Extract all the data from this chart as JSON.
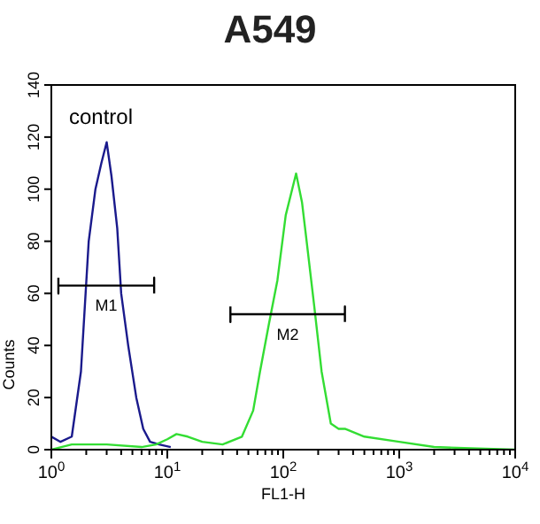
{
  "chart_data": {
    "type": "line",
    "title": "A549",
    "xlabel": "FL1-H",
    "ylabel": "Counts",
    "log": "x",
    "xlim": [
      1,
      10000
    ],
    "ylim": [
      0,
      140
    ],
    "xticks": [
      {
        "value": 1,
        "label": "10$^{0}$"
      },
      {
        "value": 2,
        "label": null
      },
      {
        "value": 3,
        "label": null
      },
      {
        "value": 4,
        "label": null
      },
      {
        "value": 5,
        "label": null
      },
      {
        "value": 6,
        "label": null
      },
      {
        "value": 7,
        "label": null
      },
      {
        "value": 8,
        "label": null
      },
      {
        "value": 9,
        "label": null
      },
      {
        "value": 10,
        "label": "10$^{1}$"
      },
      {
        "value": 20,
        "label": null
      },
      {
        "value": 30,
        "label": null
      },
      {
        "value": 40,
        "label": null
      },
      {
        "value": 50,
        "label": null
      },
      {
        "value": 60,
        "label": null
      },
      {
        "value": 70,
        "label": null
      },
      {
        "value": 80,
        "label": null
      },
      {
        "value": 90,
        "label": null
      },
      {
        "value": 100,
        "label": "10$^{2}$"
      },
      {
        "value": 200,
        "label": null
      },
      {
        "value": 300,
        "label": null
      },
      {
        "value": 400,
        "label": null
      },
      {
        "value": 500,
        "label": null
      },
      {
        "value": 600,
        "label": null
      },
      {
        "value": 700,
        "label": null
      },
      {
        "value": 800,
        "label": null
      },
      {
        "value": 900,
        "label": null
      },
      {
        "value": 1000,
        "label": "10$^{3}$"
      },
      {
        "value": 2000,
        "label": null
      },
      {
        "value": 3000,
        "label": null
      },
      {
        "value": 4000,
        "label": null
      },
      {
        "value": 5000,
        "label": null
      },
      {
        "value": 6000,
        "label": null
      },
      {
        "value": 7000,
        "label": null
      },
      {
        "value": 8000,
        "label": null
      },
      {
        "value": 9000,
        "label": null
      },
      {
        "value": 10000,
        "label": "10$^{4}$"
      }
    ],
    "yticks": [
      0,
      20,
      40,
      60,
      80,
      100,
      120,
      140
    ],
    "grid": false,
    "marker": "none",
    "line_style": "solid",
    "series": [
      {
        "color": "#1a1a8c",
        "x": [
          1,
          1.2,
          1.5,
          1.8,
          2.1,
          2.4,
          2.7,
          3,
          3.3,
          3.7,
          4,
          4.6,
          5.4,
          6.2,
          7.1,
          8.5,
          10.7
        ],
        "values": [
          5,
          3,
          5,
          30,
          80,
          100,
          110,
          118,
          105,
          85,
          60,
          40,
          20,
          8,
          3,
          2,
          1
        ]
      },
      {
        "color": "#33dd33",
        "x": [
          1,
          1.5,
          3,
          6,
          8,
          10,
          12,
          15,
          20,
          30,
          44,
          55,
          63,
          75,
          89,
          105,
          129,
          145,
          159,
          185,
          214,
          257,
          300,
          340,
          500,
          1000,
          2000,
          10000
        ],
        "values": [
          0,
          2,
          2,
          1,
          2,
          4,
          6,
          5,
          3,
          2,
          5,
          15,
          30,
          48,
          65,
          90,
          106,
          95,
          80,
          55,
          30,
          10,
          8,
          8,
          5,
          3,
          1,
          0
        ]
      },
      {
        "name": "M1",
        "color": "#000000",
        "x": [
          1.15,
          1.15,
          1.15,
          7.7,
          7.7,
          7.7
        ],
        "values": [
          66,
          60,
          63,
          63,
          66,
          60
        ]
      },
      {
        "name": "M2",
        "color": "#000000",
        "x": [
          35,
          35,
          35,
          340,
          340,
          340
        ],
        "values": [
          55,
          49,
          52,
          52,
          55,
          49
        ]
      }
    ],
    "annotations": [
      "control"
    ]
  }
}
